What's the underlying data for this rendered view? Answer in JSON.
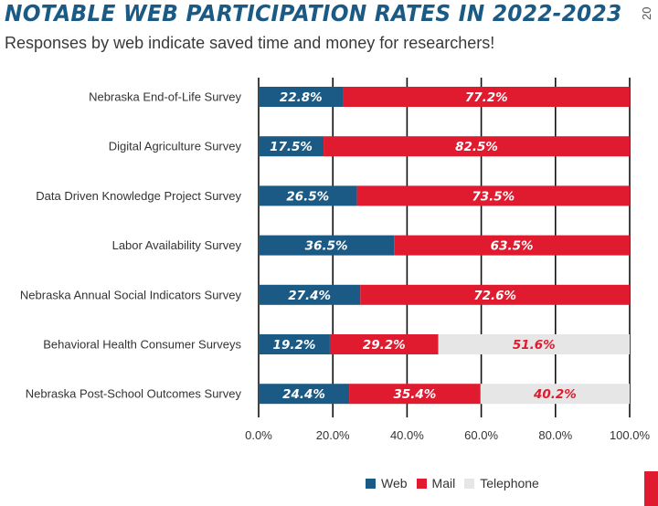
{
  "header": {
    "title": "NOTABLE WEB PARTICIPATION RATES IN 2022-2023",
    "subtitle": "Responses by web indicate saved time and money for researchers!",
    "corner_text": "20"
  },
  "colors": {
    "web": "#1b5a85",
    "mail": "#e01b2f",
    "telephone": "#e6e6e6",
    "title": "#1b5a85"
  },
  "chart_data": {
    "type": "bar",
    "orientation": "horizontal",
    "stacked": true,
    "title": "NOTABLE WEB PARTICIPATION RATES IN 2022-2023",
    "subtitle": "Responses by web indicate saved time and money for researchers!",
    "xlabel": "",
    "ylabel": "",
    "xlim": [
      0,
      100
    ],
    "x_ticks": [
      "0.0%",
      "20.0%",
      "40.0%",
      "60.0%",
      "80.0%",
      "100.0%"
    ],
    "grid": true,
    "legend_position": "bottom-center",
    "categories": [
      "Nebraska End-of-Life Survey",
      "Digital Agriculture Survey",
      "Data Driven Knowledge Project Survey",
      "Labor Availability Survey",
      "Nebraska Annual Social Indicators Survey",
      "Behavioral Health Consumer Surveys",
      "Nebraska Post-School Outcomes Survey"
    ],
    "series": [
      {
        "name": "Web",
        "color": "#1b5a85",
        "label_color": "#ffffff",
        "values": [
          22.8,
          17.5,
          26.5,
          36.5,
          27.4,
          19.2,
          24.4
        ],
        "labels": [
          "22.8%",
          "17.5%",
          "26.5%",
          "36.5%",
          "27.4%",
          "19.2%",
          "24.4%"
        ]
      },
      {
        "name": "Mail",
        "color": "#e01b2f",
        "label_color": "#ffffff",
        "values": [
          77.2,
          82.5,
          73.5,
          63.5,
          72.6,
          29.2,
          35.4
        ],
        "labels": [
          "77.2%",
          "82.5%",
          "73.5%",
          "63.5%",
          "72.6%",
          "29.2%",
          "35.4%"
        ]
      },
      {
        "name": "Telephone",
        "color": "#e6e6e6",
        "label_color": "#e01b2f",
        "values": [
          0,
          0,
          0,
          0,
          0,
          51.6,
          40.2
        ],
        "labels": [
          "",
          "",
          "",
          "",
          "",
          "51.6%",
          "40.2%"
        ]
      }
    ]
  },
  "legend": [
    {
      "name": "Web",
      "color": "#1b5a85"
    },
    {
      "name": "Mail",
      "color": "#e01b2f"
    },
    {
      "name": "Telephone",
      "color": "#e6e6e6"
    }
  ]
}
